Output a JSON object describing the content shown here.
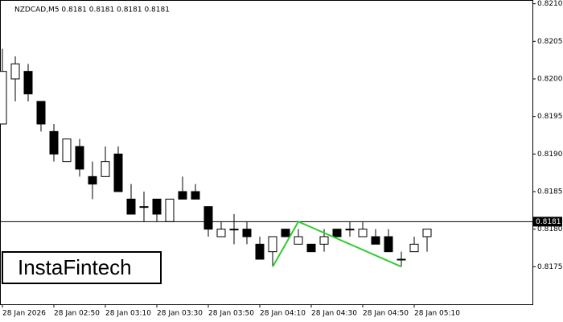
{
  "chart_data": {
    "type": "candlestick",
    "title": "NZDCAD,M5  0.8181 0.8181 0.8181 0.8181",
    "categories": [
      "28 Jan 2026",
      null,
      null,
      null,
      "28 Jan 02:50",
      null,
      null,
      null,
      "28 Jan 03:10",
      null,
      null,
      null,
      "28 Jan 03:30",
      null,
      null,
      null,
      "28 Jan 03:50",
      null,
      null,
      null,
      "28 Jan 04:10",
      null,
      null,
      null,
      "28 Jan 04:30",
      null,
      null,
      null,
      "28 Jan 04:50",
      null,
      null,
      null,
      "28 Jan 05:10",
      null
    ],
    "open": [
      0.8194,
      0.82,
      0.8201,
      0.8197,
      0.8193,
      0.8189,
      0.8191,
      0.8187,
      0.8187,
      0.819,
      0.8184,
      0.8183,
      0.8184,
      0.8181,
      0.8185,
      0.8185,
      0.8183,
      0.8179,
      0.818,
      0.818,
      0.8178,
      0.8177,
      0.818,
      0.8178,
      0.8178,
      0.8178,
      0.818,
      0.818,
      0.8179,
      0.8179,
      0.8179,
      0.8176,
      0.8177,
      0.8179
    ],
    "high": [
      0.8204,
      0.8203,
      0.8202,
      0.8197,
      0.8194,
      0.8192,
      0.8192,
      0.8189,
      0.8191,
      0.8191,
      0.8186,
      0.8185,
      0.8184,
      0.8184,
      0.8187,
      0.8186,
      0.8183,
      0.8181,
      0.8182,
      0.8181,
      0.8179,
      0.8179,
      0.818,
      0.818,
      0.8178,
      0.818,
      0.818,
      0.8181,
      0.8181,
      0.818,
      0.818,
      0.8177,
      0.8179,
      0.818
    ],
    "low": [
      0.8194,
      0.8197,
      0.8197,
      0.8193,
      0.8189,
      0.8189,
      0.8187,
      0.8184,
      0.8187,
      0.8185,
      0.8182,
      0.8181,
      0.8181,
      0.8181,
      0.8184,
      0.8184,
      0.8179,
      0.8179,
      0.8178,
      0.8178,
      0.8176,
      0.8175,
      0.8179,
      0.8178,
      0.8177,
      0.8177,
      0.8179,
      0.8179,
      0.8179,
      0.8178,
      0.8177,
      0.8175,
      0.8177,
      0.8177
    ],
    "close": [
      0.8201,
      0.8202,
      0.8198,
      0.8194,
      0.819,
      0.8192,
      0.8188,
      0.8186,
      0.8189,
      0.8185,
      0.8182,
      0.8183,
      0.8182,
      0.8184,
      0.8184,
      0.8184,
      0.818,
      0.818,
      0.818,
      0.8179,
      0.8176,
      0.8179,
      0.8179,
      0.8179,
      0.8177,
      0.8179,
      0.8179,
      0.818,
      0.818,
      0.8178,
      0.8177,
      0.8176,
      0.8178,
      0.818
    ],
    "up_color": "#ffffff",
    "down_color": "#000000",
    "ylim": [
      0.817,
      0.82105
    ],
    "yticks": [
      {
        "value": 0.821,
        "label": "0.8210"
      },
      0.8205,
      {
        "value": 0.82,
        "label": "0.8200"
      },
      0.8195,
      {
        "value": 0.819,
        "label": "0.8190"
      },
      0.8185,
      {
        "value": 0.818,
        "label": "0.8180"
      },
      0.8175
    ],
    "last_price": 0.8181,
    "pattern": {
      "color": "#33cc33",
      "x": [
        21,
        23,
        31
      ],
      "y": [
        0.8175,
        0.8181,
        0.8175
      ]
    },
    "watermark": "InstaFintech"
  }
}
